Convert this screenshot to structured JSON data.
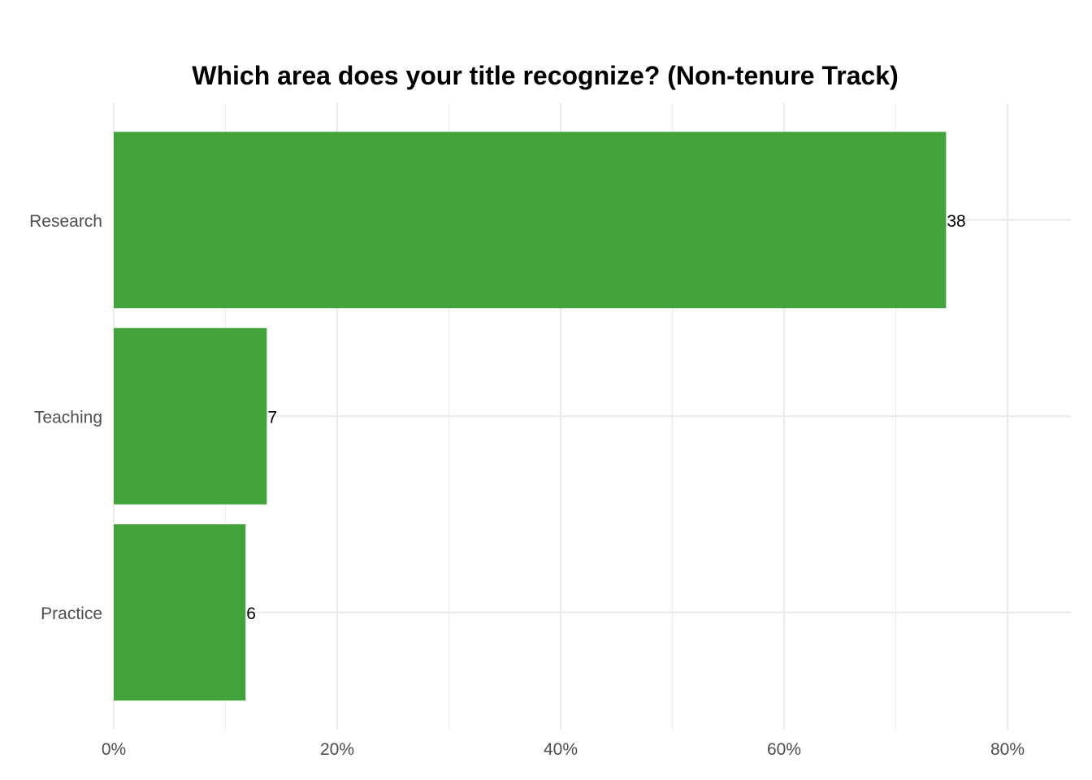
{
  "chart_data": {
    "type": "bar",
    "orientation": "horizontal",
    "title": "Which area does your title recognize? (Non-tenure Track)",
    "xlabel": "",
    "ylabel": "",
    "categories": [
      "Research",
      "Teaching",
      "Practice"
    ],
    "values": [
      74.5,
      13.7,
      11.8
    ],
    "counts": [
      "38",
      "7",
      "6"
    ],
    "xlim": [
      0,
      85
    ],
    "xticks": [
      0,
      20,
      40,
      60,
      80
    ],
    "xtick_labels": [
      "0%",
      "20%",
      "40%",
      "60%",
      "80%"
    ],
    "grid": true,
    "legend": "none",
    "bar_color": "#43a33b"
  }
}
